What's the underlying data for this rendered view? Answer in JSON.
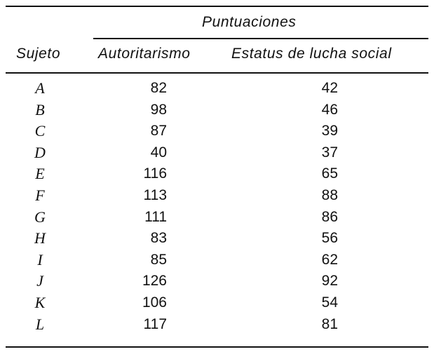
{
  "table": {
    "group_header": "Puntuaciones",
    "columns": {
      "subject": "Sujeto",
      "authoritarianism": "Autoritarismo",
      "status": "Estatus de lucha social"
    },
    "rows": [
      {
        "subject": "A",
        "authoritarianism": "82",
        "status": "42"
      },
      {
        "subject": "B",
        "authoritarianism": "98",
        "status": "46"
      },
      {
        "subject": "C",
        "authoritarianism": "87",
        "status": "39"
      },
      {
        "subject": "D",
        "authoritarianism": "40",
        "status": "37"
      },
      {
        "subject": "E",
        "authoritarianism": "116",
        "status": "65"
      },
      {
        "subject": "F",
        "authoritarianism": "113",
        "status": "88"
      },
      {
        "subject": "G",
        "authoritarianism": "111",
        "status": "86"
      },
      {
        "subject": "H",
        "authoritarianism": "83",
        "status": "56"
      },
      {
        "subject": "I",
        "authoritarianism": "85",
        "status": "62"
      },
      {
        "subject": "J",
        "authoritarianism": "126",
        "status": "92"
      },
      {
        "subject": "K",
        "authoritarianism": "106",
        "status": "54"
      },
      {
        "subject": "L",
        "authoritarianism": "117",
        "status": "81"
      }
    ]
  }
}
